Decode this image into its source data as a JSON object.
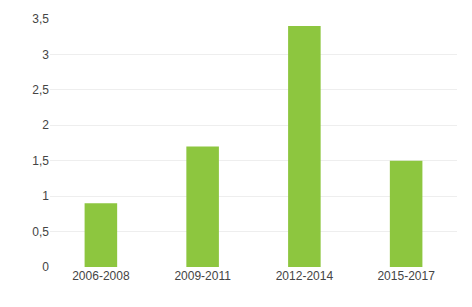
{
  "chart_data": {
    "type": "bar",
    "categories": [
      "2006-2008",
      "2009-2011",
      "2012-2014",
      "2015-2017"
    ],
    "values": [
      0.9,
      1.7,
      3.4,
      1.5
    ],
    "color": "#8DC63F",
    "ylim": [
      0,
      3.5
    ],
    "yticks": [
      0,
      {
        "value": 0.5,
        "label": "0,5"
      },
      1,
      {
        "value": 1.5,
        "label": "1,5"
      },
      2,
      {
        "value": 2.5,
        "label": "2,5"
      },
      3,
      {
        "value": 3.5,
        "label": "3,5"
      }
    ],
    "grid": true
  }
}
